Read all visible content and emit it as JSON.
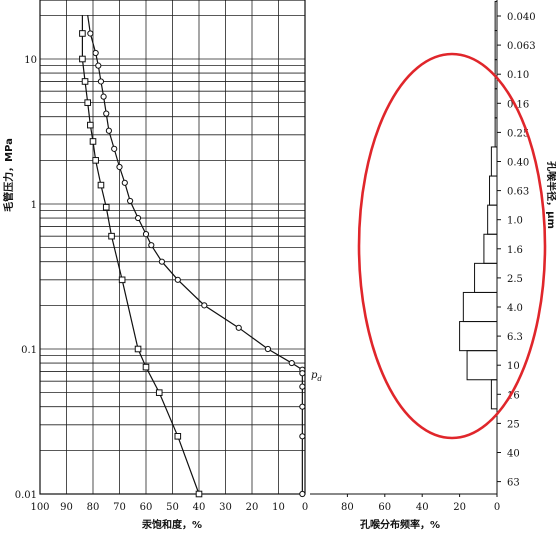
{
  "chart_data": [
    {
      "type": "line",
      "xlabel": "汞饱和度，%",
      "ylabel": "毛管压力，MPa",
      "xlim": [
        100,
        0
      ],
      "ylim": [
        0.01,
        20
      ],
      "yscale": "log",
      "x_ticks": [
        "100",
        "90",
        "80",
        "70",
        "60",
        "50",
        "40",
        "30",
        "20",
        "10",
        "0"
      ],
      "y_ticks": [
        "10",
        "1",
        "0.1",
        "0.01"
      ],
      "annotations": [
        {
          "main": "p",
          "sub": "d",
          "x": -2,
          "y": 0.068
        }
      ],
      "series": [
        {
          "marker": "circle",
          "points": [
            [
              82,
              20
            ],
            [
              81,
              15
            ],
            [
              79,
              11
            ],
            [
              78,
              9
            ],
            [
              77,
              7
            ],
            [
              76,
              5.5
            ],
            [
              75,
              4.2
            ],
            [
              74,
              3.2
            ],
            [
              72,
              2.4
            ],
            [
              70,
              1.8
            ],
            [
              68,
              1.4
            ],
            [
              66,
              1.05
            ],
            [
              63,
              0.8
            ],
            [
              60,
              0.62
            ],
            [
              58,
              0.52
            ],
            [
              54,
              0.4
            ],
            [
              48,
              0.3
            ],
            [
              38,
              0.2
            ],
            [
              25,
              0.14
            ],
            [
              14,
              0.1
            ],
            [
              5,
              0.08
            ],
            [
              1,
              0.072
            ],
            [
              1,
              0.068
            ],
            [
              1,
              0.055
            ],
            [
              1,
              0.04
            ],
            [
              1,
              0.025
            ],
            [
              1,
              0.01
            ]
          ]
        },
        {
          "marker": "square",
          "points": [
            [
              84,
              20
            ],
            [
              84,
              15
            ],
            [
              84,
              10
            ],
            [
              83,
              7
            ],
            [
              82,
              5
            ],
            [
              81,
              3.5
            ],
            [
              80,
              2.7
            ],
            [
              79,
              2
            ],
            [
              77,
              1.35
            ],
            [
              75,
              0.95
            ],
            [
              73,
              0.6
            ],
            [
              69,
              0.3
            ],
            [
              63,
              0.1
            ],
            [
              60,
              0.075
            ],
            [
              55,
              0.05
            ],
            [
              48,
              0.025
            ],
            [
              40,
              0.01
            ]
          ]
        }
      ]
    },
    {
      "type": "bar",
      "orientation": "horizontal",
      "xlabel": "孔喉分布频率，%",
      "ylabel": "孔喉半径，μm",
      "xlim": [
        100,
        0
      ],
      "x_ticks": [
        "80",
        "60",
        "40",
        "20",
        "0"
      ],
      "categories": [
        "0.040",
        "0.063",
        "0.10",
        "0.16",
        "0.25",
        "0.40",
        "0.63",
        "1.0",
        "1.6",
        "2.5",
        "4.0",
        "6.3",
        "10",
        "16",
        "25",
        "40",
        "63"
      ],
      "values": [
        1,
        1,
        1,
        1,
        1,
        3,
        4,
        5,
        7,
        12,
        18,
        20,
        16,
        3,
        0,
        0,
        0
      ]
    }
  ]
}
